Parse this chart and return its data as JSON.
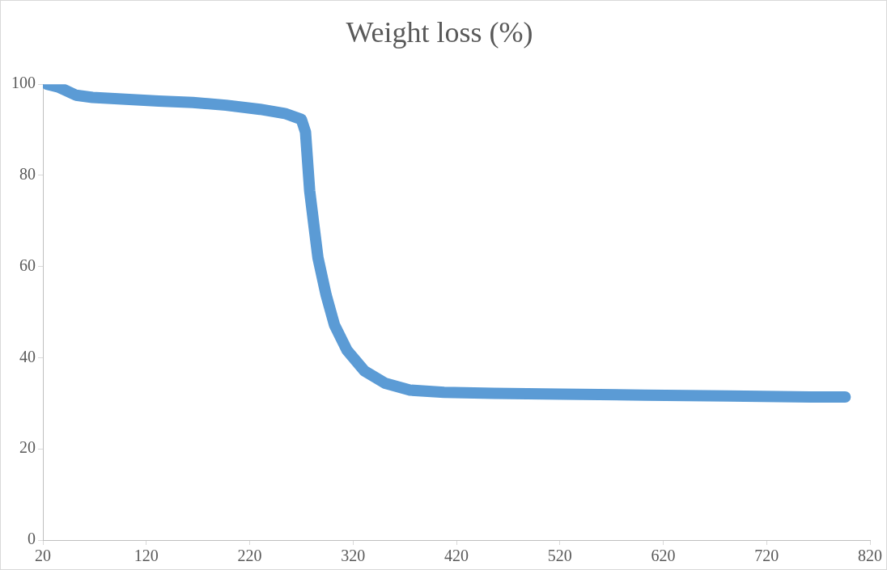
{
  "chart_data": {
    "type": "line",
    "title": "Weight loss (%)",
    "x": [
      24,
      35,
      52,
      68,
      100,
      132,
      165,
      197,
      230,
      254,
      270,
      274,
      278,
      282,
      286,
      294,
      302,
      314,
      331,
      351,
      375,
      408,
      456,
      521,
      602,
      683,
      763,
      796
    ],
    "series": [
      {
        "color": "#5b9bd5",
        "values": [
          100,
          99.4,
          97.6,
          97.1,
          96.7,
          96.3,
          96,
          95.4,
          94.5,
          93.6,
          92.3,
          89.5,
          76.7,
          69.3,
          62,
          53.7,
          47.2,
          41.7,
          37.1,
          34.4,
          32.9,
          32.4,
          32.2,
          32,
          31.8,
          31.6,
          31.4,
          31.4
        ]
      }
    ],
    "xlim": [
      20,
      820
    ],
    "xticks": [
      20,
      120,
      220,
      320,
      420,
      520,
      620,
      720,
      820
    ],
    "ylim": [
      0,
      100
    ],
    "yticks": [
      0,
      20,
      40,
      60,
      80,
      100
    ],
    "grid": false,
    "legend": false,
    "marker": "none",
    "line_style": "solid"
  }
}
